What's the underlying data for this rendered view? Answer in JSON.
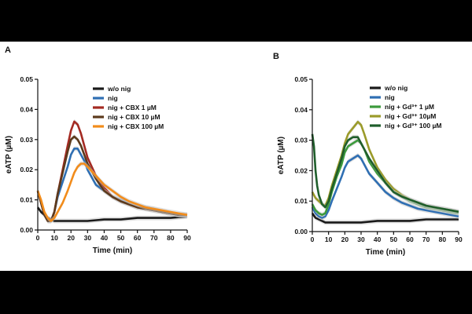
{
  "chart_data": [
    {
      "type": "line",
      "panel": "A",
      "xlabel": "Time (min)",
      "ylabel": "eATP (µM)",
      "xlim": [
        0,
        90
      ],
      "ylim": [
        0,
        0.05
      ],
      "x_ticks": [
        "0",
        "10",
        "20",
        "30",
        "40",
        "50",
        "60",
        "70",
        "80",
        "90"
      ],
      "y_ticks": [
        "0.00",
        "0.01",
        "0.02",
        "0.03",
        "0.04",
        "0.05"
      ],
      "legend_position": "top-right",
      "series": [
        {
          "name": "w/o nig",
          "color": "#1a1a1a",
          "x": [
            0,
            2,
            4,
            6,
            8,
            10,
            15,
            20,
            30,
            40,
            50,
            60,
            70,
            80,
            90
          ],
          "y": [
            0.0075,
            0.006,
            0.005,
            0.004,
            0.0035,
            0.003,
            0.003,
            0.003,
            0.003,
            0.0035,
            0.0035,
            0.004,
            0.004,
            0.004,
            0.0045
          ]
        },
        {
          "name": "nig",
          "color": "#2f6fb3",
          "x": [
            0,
            2,
            4,
            6,
            8,
            10,
            12,
            15,
            18,
            20,
            22,
            24,
            26,
            28,
            30,
            35,
            40,
            45,
            50,
            55,
            60,
            65,
            70,
            75,
            80,
            85,
            90
          ],
          "y": [
            0.013,
            0.009,
            0.005,
            0.003,
            0.003,
            0.006,
            0.011,
            0.016,
            0.021,
            0.025,
            0.027,
            0.027,
            0.025,
            0.023,
            0.02,
            0.015,
            0.013,
            0.011,
            0.01,
            0.009,
            0.008,
            0.0075,
            0.007,
            0.006,
            0.0055,
            0.005,
            0.005
          ]
        },
        {
          "name": "nig + CBX 1 µM",
          "color": "#a42a22",
          "x": [
            0,
            2,
            4,
            6,
            8,
            10,
            12,
            15,
            18,
            20,
            22,
            24,
            26,
            28,
            30,
            35,
            40,
            45,
            50,
            55,
            60,
            65,
            70,
            75,
            80,
            85,
            90
          ],
          "y": [
            0.013,
            0.009,
            0.005,
            0.003,
            0.003,
            0.006,
            0.012,
            0.02,
            0.028,
            0.033,
            0.036,
            0.035,
            0.032,
            0.028,
            0.024,
            0.018,
            0.014,
            0.011,
            0.0095,
            0.0085,
            0.0075,
            0.007,
            0.0065,
            0.006,
            0.0055,
            0.005,
            0.005
          ]
        },
        {
          "name": "nig + CBX 10 µM",
          "color": "#5c3a1c",
          "x": [
            0,
            2,
            4,
            6,
            8,
            10,
            12,
            15,
            18,
            20,
            22,
            24,
            26,
            28,
            30,
            35,
            40,
            45,
            50,
            55,
            60,
            65,
            70,
            75,
            80,
            85,
            90
          ],
          "y": [
            0.013,
            0.009,
            0.005,
            0.003,
            0.003,
            0.006,
            0.012,
            0.019,
            0.026,
            0.03,
            0.031,
            0.03,
            0.028,
            0.025,
            0.022,
            0.017,
            0.013,
            0.011,
            0.0095,
            0.0085,
            0.0075,
            0.007,
            0.0065,
            0.006,
            0.0055,
            0.005,
            0.005
          ]
        },
        {
          "name": "nig + CBX 100 µM",
          "color": "#f28c1b",
          "x": [
            0,
            2,
            4,
            6,
            8,
            10,
            12,
            15,
            18,
            20,
            22,
            24,
            26,
            28,
            30,
            35,
            40,
            45,
            50,
            55,
            60,
            65,
            70,
            75,
            80,
            85,
            90
          ],
          "y": [
            0.013,
            0.01,
            0.006,
            0.004,
            0.003,
            0.004,
            0.006,
            0.009,
            0.013,
            0.016,
            0.019,
            0.021,
            0.022,
            0.022,
            0.021,
            0.018,
            0.015,
            0.013,
            0.011,
            0.0095,
            0.0085,
            0.0075,
            0.007,
            0.0065,
            0.006,
            0.0055,
            0.005
          ]
        }
      ]
    },
    {
      "type": "line",
      "panel": "B",
      "xlabel": "Time (min)",
      "ylabel": "eATP (µM)",
      "xlim": [
        0,
        90
      ],
      "ylim": [
        0,
        0.05
      ],
      "x_ticks": [
        "0",
        "10",
        "20",
        "30",
        "40",
        "50",
        "60",
        "70",
        "80",
        "90"
      ],
      "y_ticks": [
        "0.00",
        "0.01",
        "0.02",
        "0.03",
        "0.04",
        "0.05"
      ],
      "legend_position": "top-right",
      "series": [
        {
          "name": "w/o nig",
          "color": "#1a1a1a",
          "x": [
            0,
            2,
            4,
            6,
            8,
            10,
            15,
            20,
            30,
            40,
            50,
            60,
            70,
            80,
            90
          ],
          "y": [
            0.006,
            0.0045,
            0.004,
            0.0035,
            0.003,
            0.003,
            0.003,
            0.003,
            0.003,
            0.0035,
            0.0035,
            0.0035,
            0.004,
            0.004,
            0.004
          ]
        },
        {
          "name": "nig",
          "color": "#2f6fb3",
          "x": [
            0,
            2,
            4,
            6,
            8,
            10,
            12,
            15,
            18,
            20,
            22,
            25,
            28,
            30,
            32,
            35,
            40,
            45,
            50,
            55,
            60,
            65,
            70,
            75,
            80,
            85,
            90
          ],
          "y": [
            0.008,
            0.006,
            0.005,
            0.0045,
            0.005,
            0.007,
            0.01,
            0.014,
            0.018,
            0.021,
            0.023,
            0.024,
            0.025,
            0.024,
            0.022,
            0.019,
            0.016,
            0.013,
            0.011,
            0.0095,
            0.0085,
            0.0075,
            0.007,
            0.0065,
            0.006,
            0.0055,
            0.005
          ]
        },
        {
          "name": "nig + Gd³⁺ 1 µM",
          "color": "#3c9a3c",
          "x": [
            0,
            2,
            4,
            6,
            8,
            10,
            12,
            15,
            18,
            20,
            22,
            25,
            28,
            30,
            32,
            35,
            40,
            45,
            50,
            55,
            60,
            65,
            70,
            75,
            80,
            85,
            90
          ],
          "y": [
            0.009,
            0.007,
            0.006,
            0.0055,
            0.006,
            0.009,
            0.013,
            0.018,
            0.022,
            0.026,
            0.028,
            0.029,
            0.03,
            0.029,
            0.027,
            0.023,
            0.019,
            0.016,
            0.013,
            0.0115,
            0.01,
            0.009,
            0.008,
            0.0075,
            0.007,
            0.0065,
            0.006
          ]
        },
        {
          "name": "nig + Gd³⁺ 10µM",
          "color": "#9b9b2a",
          "x": [
            0,
            2,
            4,
            6,
            8,
            10,
            12,
            15,
            18,
            20,
            22,
            25,
            28,
            30,
            32,
            35,
            40,
            45,
            50,
            55,
            60,
            65,
            70,
            75,
            80,
            85,
            90
          ],
          "y": [
            0.013,
            0.011,
            0.01,
            0.009,
            0.0085,
            0.011,
            0.015,
            0.02,
            0.025,
            0.029,
            0.032,
            0.034,
            0.036,
            0.035,
            0.032,
            0.027,
            0.021,
            0.017,
            0.014,
            0.012,
            0.0105,
            0.0095,
            0.0085,
            0.008,
            0.0075,
            0.007,
            0.0065
          ]
        },
        {
          "name": "nig + Gd³⁺ 100 µM",
          "color": "#1f5e2b",
          "x": [
            0,
            1,
            2,
            3,
            4,
            6,
            8,
            10,
            12,
            15,
            18,
            20,
            22,
            25,
            28,
            30,
            32,
            35,
            40,
            45,
            50,
            55,
            60,
            65,
            70,
            75,
            80,
            85,
            90
          ],
          "y": [
            0.032,
            0.028,
            0.02,
            0.015,
            0.012,
            0.009,
            0.008,
            0.01,
            0.014,
            0.019,
            0.024,
            0.028,
            0.03,
            0.031,
            0.031,
            0.029,
            0.027,
            0.024,
            0.02,
            0.016,
            0.013,
            0.0115,
            0.0105,
            0.0095,
            0.0085,
            0.008,
            0.0075,
            0.007,
            0.0065
          ]
        }
      ]
    }
  ]
}
